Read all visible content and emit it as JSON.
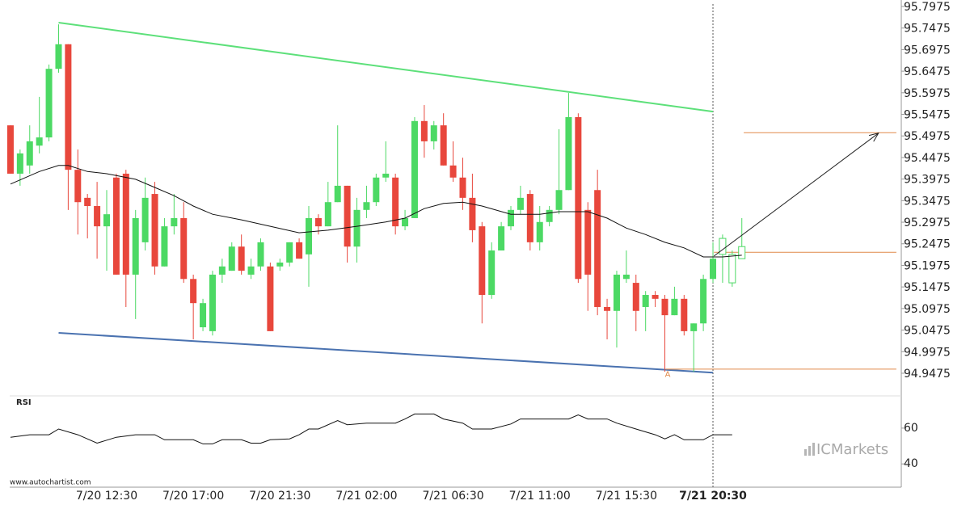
{
  "chart_data": {
    "type": "candlestick",
    "categories": [
      null,
      null,
      null,
      null,
      null,
      null,
      null,
      null,
      null,
      null,
      "7/20 12:30",
      null,
      null,
      null,
      null,
      null,
      null,
      null,
      null,
      "7/20 17:00",
      null,
      null,
      null,
      null,
      null,
      null,
      null,
      null,
      "7/20 21:30",
      null,
      null,
      null,
      null,
      null,
      null,
      null,
      null,
      "7/21 02:00",
      null,
      null,
      null,
      null,
      null,
      null,
      null,
      null,
      "7/21 06:30",
      null,
      null,
      null,
      null,
      null,
      null,
      null,
      null,
      "7/21 11:00",
      null,
      null,
      null,
      null,
      null,
      null,
      null,
      null,
      "7/21 15:30",
      null,
      null,
      null,
      null,
      null,
      null,
      null,
      null,
      "7/21 20:30",
      null,
      null,
      null
    ],
    "open": [
      95.522,
      95.41,
      95.429,
      95.475,
      95.494,
      95.653,
      95.71,
      95.419,
      95.354,
      95.335,
      95.288,
      95.401,
      95.41,
      95.176,
      95.251,
      95.363,
      95.195,
      95.288,
      95.307,
      95.166,
      95.054,
      95.045,
      95.176,
      95.185,
      95.241,
      95.176,
      95.195,
      95.195,
      95.195,
      95.204,
      95.251,
      95.223,
      95.307,
      95.288,
      95.344,
      95.382,
      95.241,
      95.326,
      95.344,
      95.401,
      95.401,
      95.288,
      95.307,
      95.532,
      95.485,
      95.522,
      95.429,
      95.401,
      95.354,
      95.288,
      95.129,
      95.232,
      95.288,
      95.326,
      95.363,
      95.251,
      95.298,
      95.326,
      95.372,
      95.541,
      95.326,
      95.372,
      95.101,
      95.092,
      95.166,
      95.157,
      95.101,
      95.129,
      95.12,
      95.082,
      95.12,
      95.045,
      95.063,
      95.166,
      95.223,
      95.157,
      95.213
    ],
    "high": [
      95.522,
      95.466,
      95.522,
      95.588,
      95.663,
      95.756,
      95.71,
      95.466,
      95.363,
      95.391,
      95.372,
      95.41,
      95.419,
      95.326,
      95.401,
      95.391,
      95.307,
      95.363,
      95.344,
      95.176,
      95.12,
      95.185,
      95.213,
      95.251,
      95.269,
      95.213,
      95.26,
      95.204,
      95.213,
      95.251,
      95.26,
      95.335,
      95.316,
      95.391,
      95.522,
      95.382,
      95.354,
      95.382,
      95.41,
      95.485,
      95.41,
      95.326,
      95.541,
      95.569,
      95.532,
      95.55,
      95.485,
      95.447,
      95.41,
      95.298,
      95.251,
      95.298,
      95.335,
      95.382,
      95.372,
      95.335,
      95.335,
      95.513,
      95.597,
      95.55,
      95.344,
      95.419,
      95.12,
      95.185,
      95.232,
      95.176,
      95.138,
      95.138,
      95.129,
      95.148,
      95.129,
      95.063,
      95.176,
      95.251,
      95.269,
      95.232,
      95.307
    ],
    "low": [
      95.41,
      95.382,
      95.41,
      95.457,
      95.485,
      95.644,
      95.326,
      95.269,
      95.26,
      95.213,
      95.185,
      95.176,
      95.101,
      95.073,
      95.232,
      95.176,
      95.195,
      95.269,
      95.157,
      95.026,
      95.045,
      95.035,
      95.157,
      95.185,
      95.176,
      95.166,
      95.185,
      95.045,
      95.185,
      95.195,
      95.213,
      95.148,
      95.269,
      95.288,
      95.344,
      95.204,
      95.204,
      95.307,
      95.335,
      95.391,
      95.269,
      95.279,
      95.307,
      95.447,
      95.466,
      95.429,
      95.391,
      95.326,
      95.251,
      95.063,
      95.12,
      95.232,
      95.279,
      95.316,
      95.232,
      95.232,
      95.288,
      95.316,
      95.372,
      95.157,
      95.092,
      95.082,
      95.026,
      95.007,
      95.157,
      95.045,
      95.045,
      95.101,
      94.951,
      95.082,
      95.035,
      94.951,
      95.045,
      95.157,
      95.157,
      95.148,
      95.213
    ],
    "close": [
      95.41,
      95.457,
      95.485,
      95.494,
      95.653,
      95.71,
      95.419,
      95.344,
      95.335,
      95.288,
      95.316,
      95.176,
      95.176,
      95.307,
      95.354,
      95.195,
      95.288,
      95.307,
      95.166,
      95.11,
      95.11,
      95.176,
      95.195,
      95.241,
      95.185,
      95.195,
      95.251,
      95.045,
      95.204,
      95.251,
      95.213,
      95.307,
      95.288,
      95.344,
      95.382,
      95.241,
      95.326,
      95.344,
      95.401,
      95.41,
      95.288,
      95.307,
      95.532,
      95.485,
      95.522,
      95.429,
      95.401,
      95.354,
      95.279,
      95.129,
      95.232,
      95.288,
      95.326,
      95.354,
      95.251,
      95.298,
      95.326,
      95.372,
      95.541,
      95.166,
      95.176,
      95.101,
      95.092,
      95.176,
      95.176,
      95.092,
      95.129,
      95.12,
      95.082,
      95.12,
      95.045,
      95.063,
      95.166,
      95.213,
      95.26,
      95.223,
      95.241
    ],
    "up_color": "#4cd964",
    "down_color": "#e8473c",
    "hollow_from_index": 74,
    "now_index": 73,
    "xlim": [
      -0.08,
      92.57
    ],
    "ylim": [
      94.895,
      95.8125
    ],
    "yticks": [
      95.7975,
      95.7475,
      95.6975,
      95.6475,
      95.5975,
      95.5475,
      95.4975,
      95.4475,
      95.3975,
      95.3475,
      95.2975,
      95.2475,
      95.1975,
      95.1475,
      95.0975,
      95.0475,
      94.9975,
      94.9475
    ],
    "moving_average": {
      "color": "#111111",
      "x": [
        0,
        3,
        5,
        6,
        8,
        10,
        13,
        15,
        17,
        19,
        21,
        24,
        27,
        30,
        33,
        36,
        39,
        41,
        43,
        45,
        47,
        49,
        52,
        55,
        57,
        60,
        62,
        64,
        66,
        68,
        70,
        72,
        74,
        76
      ],
      "values": [
        95.386,
        95.415,
        95.429,
        95.429,
        95.415,
        95.41,
        95.397,
        95.378,
        95.359,
        95.335,
        95.316,
        95.303,
        95.288,
        95.273,
        95.279,
        95.288,
        95.298,
        95.307,
        95.329,
        95.341,
        95.344,
        95.335,
        95.316,
        95.316,
        95.322,
        95.322,
        95.307,
        95.284,
        95.269,
        95.251,
        95.238,
        95.217,
        95.217,
        95.221
      ]
    },
    "resistance": {
      "color": "#5de07a",
      "x": [
        5,
        73
      ],
      "values": [
        95.76,
        95.554
      ]
    },
    "support": {
      "color": "#4a72b0",
      "x": [
        5,
        73
      ],
      "values": [
        95.041,
        94.949
      ]
    },
    "levels": [
      {
        "color": "#e08a4a",
        "x": [
          76.2,
          92.06
        ],
        "values": [
          95.505,
          95.505
        ]
      },
      {
        "color": "#e08a4a",
        "x": [
          73.1,
          92.06
        ],
        "values": [
          95.228,
          95.228
        ]
      },
      {
        "color": "#e08a4a",
        "x": [
          68.1,
          92.06
        ],
        "values": [
          94.957,
          94.957
        ]
      }
    ],
    "arrow": {
      "color": "#222222",
      "x": [
        73.1,
        90.2
      ],
      "values": [
        95.219,
        95.504
      ]
    },
    "annotation": {
      "text": "A",
      "x": 68.3,
      "y": 94.945,
      "color": "#e08a4a"
    },
    "rsi": {
      "label": "RSI",
      "ylim": [
        27,
        78
      ],
      "yticks": [
        60,
        40
      ],
      "x": [
        0,
        2,
        4,
        5,
        7,
        9,
        11,
        13,
        15,
        16,
        19,
        20,
        21,
        22,
        24,
        25,
        26,
        27,
        29,
        30,
        31,
        32,
        34,
        35,
        37,
        40,
        41,
        42,
        44,
        45,
        47,
        48,
        50,
        52,
        53,
        55,
        58,
        59,
        60,
        62,
        63,
        65,
        67,
        68,
        69,
        70,
        72,
        73,
        75
      ],
      "values": [
        54.9,
        56.3,
        56.3,
        59.5,
        56.3,
        51.6,
        54.9,
        56.3,
        56.3,
        53.5,
        53.5,
        51.2,
        51.2,
        53.5,
        53.5,
        51.6,
        51.6,
        53.5,
        54.0,
        56.3,
        59.5,
        59.5,
        64.2,
        61.9,
        62.8,
        62.8,
        65.1,
        67.9,
        67.9,
        65.1,
        62.8,
        59.5,
        59.5,
        62.3,
        65.1,
        65.1,
        65.1,
        67.4,
        65.1,
        65.1,
        62.8,
        59.5,
        56.3,
        54.0,
        56.3,
        53.5,
        53.5,
        56.3,
        56.3
      ]
    },
    "source": "www.autochartist.com",
    "watermark": "ICMarkets"
  }
}
